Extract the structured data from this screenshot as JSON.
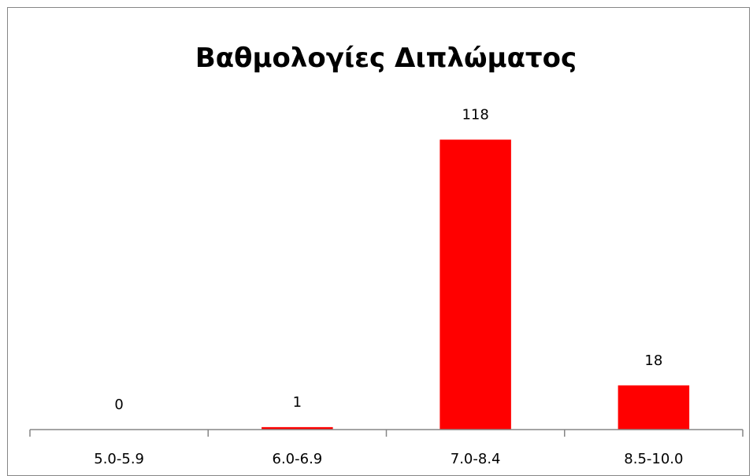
{
  "chart_data": {
    "type": "bar",
    "title": "Βαθμολογίες Διπλώματος",
    "xlabel": "",
    "ylabel": "",
    "categories": [
      "5.0-5.9",
      "6.0-6.9",
      "7.0-8.4",
      "8.5-10.0"
    ],
    "values": [
      0,
      1,
      118,
      18
    ],
    "data_labels": [
      "0",
      "1",
      "118",
      "18"
    ],
    "ylim": [
      0,
      130
    ],
    "bar_color": "#ff0000",
    "grid": false,
    "legend": "none"
  }
}
